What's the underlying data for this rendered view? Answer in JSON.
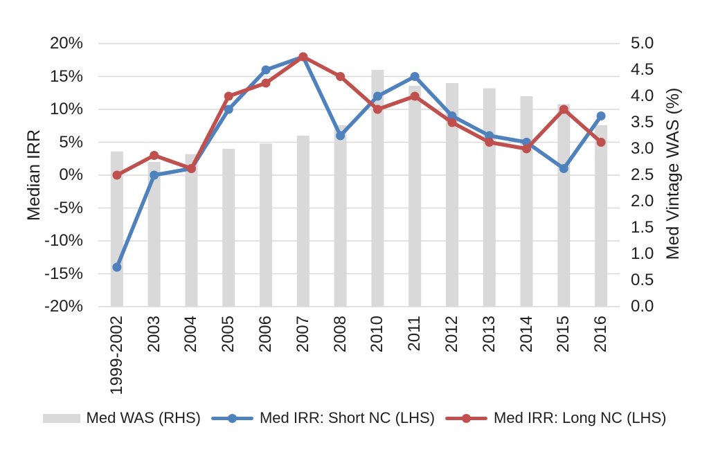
{
  "chart_data": {
    "type": "combo-bar-line",
    "title": "",
    "categories": [
      "1999-2002",
      "2003",
      "2004",
      "2005",
      "2006",
      "2007",
      "2008",
      "2010",
      "2011",
      "2012",
      "2013",
      "2014",
      "2015",
      "2016"
    ],
    "series": [
      {
        "name": "Med WAS (RHS)",
        "type": "bar",
        "axis": "right",
        "color": "#d9d9d9",
        "values": [
          2.95,
          2.75,
          2.9,
          3.0,
          3.1,
          3.25,
          3.45,
          4.5,
          4.2,
          4.25,
          4.15,
          4.0,
          3.85,
          3.45
        ]
      },
      {
        "name": "Med IRR: Short NC (LHS)",
        "type": "line",
        "axis": "left",
        "color": "#4f81bd",
        "values": [
          -14,
          0,
          1,
          10,
          16,
          18,
          6,
          12,
          15,
          9,
          6,
          5,
          1,
          9
        ]
      },
      {
        "name": "Med IRR: Long NC (LHS)",
        "type": "line",
        "axis": "left",
        "color": "#c0504d",
        "values": [
          0,
          3,
          1,
          12,
          14,
          18,
          15,
          10,
          12,
          8,
          5,
          4,
          10,
          5
        ]
      }
    ],
    "left_axis": {
      "title": "Median IRR",
      "min": -20,
      "max": 20,
      "step": 5,
      "tick_labels": [
        "20%",
        "15%",
        "10%",
        "5%",
        "0%",
        "-5%",
        "-10%",
        "-15%",
        "-20%"
      ]
    },
    "right_axis": {
      "title": "Med Vintage WAS (%)",
      "min": 0,
      "max": 5,
      "step": 0.5,
      "tick_labels": [
        "5.0",
        "4.5",
        "4.0",
        "3.5",
        "3.0",
        "2.5",
        "2.0",
        "1.5",
        "1.0",
        "0.5",
        "0.0"
      ]
    },
    "grid": true,
    "gridline_color": "#d9d9d9",
    "background_color": "#ffffff",
    "legend_position": "bottom"
  }
}
